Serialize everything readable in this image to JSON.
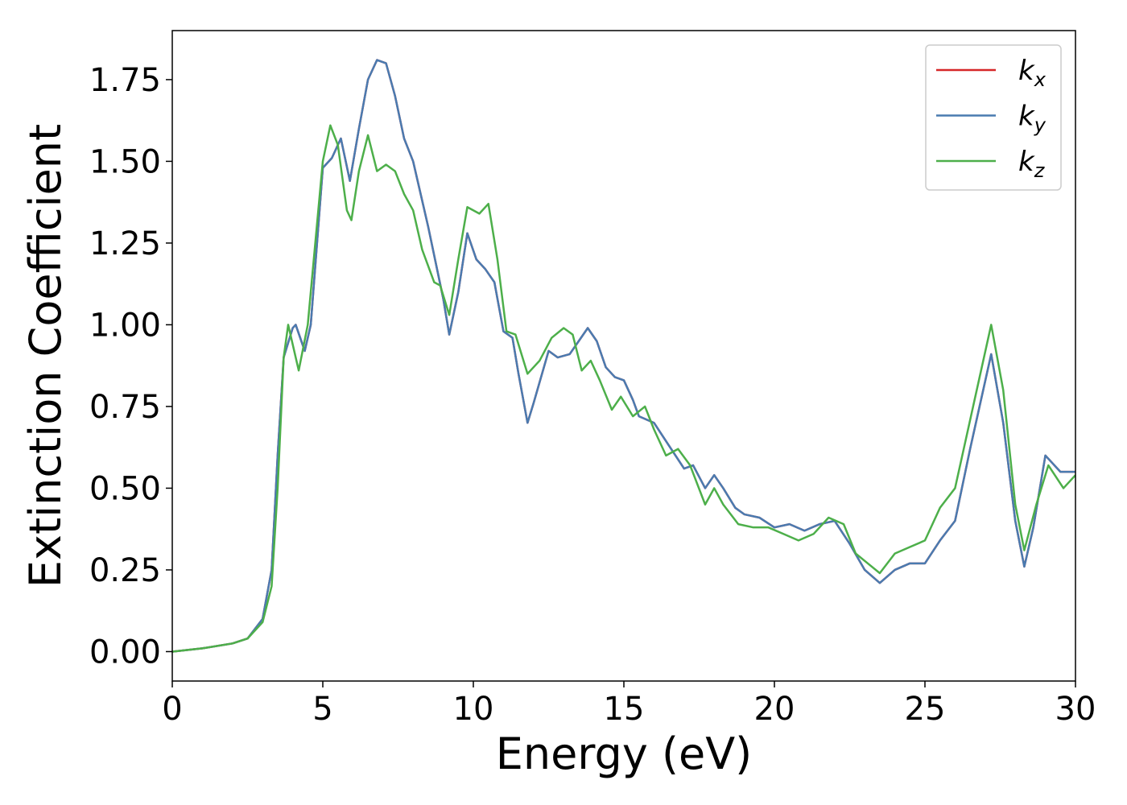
{
  "chart_data": {
    "type": "line",
    "xlabel": "Energy (eV)",
    "ylabel": "Extinction Coefficient",
    "xlim": [
      0,
      30
    ],
    "ylim": [
      -0.09,
      1.9
    ],
    "xticks": [
      0,
      5,
      10,
      15,
      20,
      25,
      30
    ],
    "yticks": [
      {
        "value": 0,
        "label": "0.00"
      },
      {
        "value": 0.25,
        "label": "0.25"
      },
      {
        "value": 0.5,
        "label": "0.50"
      },
      {
        "value": 0.75,
        "label": "0.75"
      },
      {
        "value": 1,
        "label": "1.00"
      },
      {
        "value": 1.25,
        "label": "1.25"
      },
      {
        "value": 1.5,
        "label": "1.50"
      },
      {
        "value": 1.75,
        "label": "1.75"
      }
    ],
    "grid": false,
    "legend": "upper right",
    "series": [
      {
        "name": "kx",
        "color": "#d62728",
        "x": [
          0,
          1,
          2,
          2.5,
          3,
          3.3,
          3.5,
          3.7,
          4,
          4.1,
          4.4,
          4.6,
          5,
          5.3,
          5.6,
          5.9,
          6.2,
          6.5,
          6.8,
          7.1,
          7.4,
          7.7,
          8,
          8.5,
          9,
          9.2,
          9.5,
          9.8,
          10.1,
          10.4,
          10.7,
          11,
          11.3,
          11.5,
          11.8,
          12,
          12.5,
          12.8,
          13.2,
          13.5,
          13.8,
          14.1,
          14.4,
          14.7,
          15,
          15.3,
          15.5,
          16,
          16.5,
          17,
          17.3,
          17.7,
          18,
          18.3,
          18.7,
          19,
          19.5,
          20,
          20.5,
          21,
          21.5,
          22,
          22.5,
          23,
          23.5,
          24,
          24.5,
          25,
          25.5,
          26,
          26.5,
          27.2,
          27.6,
          28,
          28.3,
          28.6,
          29,
          29.5,
          30
        ],
        "values": [
          0,
          0.01,
          0.025,
          0.04,
          0.1,
          0.25,
          0.6,
          0.9,
          0.99,
          1.0,
          0.92,
          1.0,
          1.48,
          1.51,
          1.57,
          1.44,
          1.6,
          1.75,
          1.81,
          1.8,
          1.7,
          1.57,
          1.5,
          1.3,
          1.08,
          0.97,
          1.1,
          1.28,
          1.2,
          1.17,
          1.13,
          0.98,
          0.96,
          0.85,
          0.7,
          0.76,
          0.92,
          0.9,
          0.91,
          0.95,
          0.99,
          0.95,
          0.87,
          0.84,
          0.83,
          0.77,
          0.72,
          0.7,
          0.63,
          0.56,
          0.57,
          0.5,
          0.54,
          0.5,
          0.44,
          0.42,
          0.41,
          0.38,
          0.39,
          0.37,
          0.39,
          0.4,
          0.33,
          0.25,
          0.21,
          0.25,
          0.27,
          0.27,
          0.34,
          0.4,
          0.62,
          0.91,
          0.7,
          0.4,
          0.26,
          0.38,
          0.6,
          0.55,
          0.55
        ]
      },
      {
        "name": "ky",
        "color": "#4a7bb0",
        "x": [
          0,
          1,
          2,
          2.5,
          3,
          3.3,
          3.5,
          3.7,
          4,
          4.1,
          4.4,
          4.6,
          5,
          5.3,
          5.6,
          5.9,
          6.2,
          6.5,
          6.8,
          7.1,
          7.4,
          7.7,
          8,
          8.5,
          9,
          9.2,
          9.5,
          9.8,
          10.1,
          10.4,
          10.7,
          11,
          11.3,
          11.5,
          11.8,
          12,
          12.5,
          12.8,
          13.2,
          13.5,
          13.8,
          14.1,
          14.4,
          14.7,
          15,
          15.3,
          15.5,
          16,
          16.5,
          17,
          17.3,
          17.7,
          18,
          18.3,
          18.7,
          19,
          19.5,
          20,
          20.5,
          21,
          21.5,
          22,
          22.5,
          23,
          23.5,
          24,
          24.5,
          25,
          25.5,
          26,
          26.5,
          27.2,
          27.6,
          28,
          28.3,
          28.6,
          29,
          29.5,
          30
        ],
        "values": [
          0,
          0.01,
          0.025,
          0.04,
          0.1,
          0.25,
          0.6,
          0.9,
          0.99,
          1.0,
          0.92,
          1.0,
          1.48,
          1.51,
          1.57,
          1.44,
          1.6,
          1.75,
          1.81,
          1.8,
          1.7,
          1.57,
          1.5,
          1.3,
          1.08,
          0.97,
          1.1,
          1.28,
          1.2,
          1.17,
          1.13,
          0.98,
          0.96,
          0.85,
          0.7,
          0.76,
          0.92,
          0.9,
          0.91,
          0.95,
          0.99,
          0.95,
          0.87,
          0.84,
          0.83,
          0.77,
          0.72,
          0.7,
          0.63,
          0.56,
          0.57,
          0.5,
          0.54,
          0.5,
          0.44,
          0.42,
          0.41,
          0.38,
          0.39,
          0.37,
          0.39,
          0.4,
          0.33,
          0.25,
          0.21,
          0.25,
          0.27,
          0.27,
          0.34,
          0.4,
          0.62,
          0.91,
          0.7,
          0.4,
          0.26,
          0.38,
          0.6,
          0.55,
          0.55
        ]
      },
      {
        "name": "kz",
        "color": "#4daf4a",
        "x": [
          0,
          1,
          2,
          2.5,
          3,
          3.3,
          3.5,
          3.7,
          3.85,
          4.05,
          4.2,
          4.5,
          4.8,
          5,
          5.25,
          5.5,
          5.8,
          5.95,
          6.2,
          6.5,
          6.8,
          7.1,
          7.4,
          7.7,
          8,
          8.3,
          8.7,
          8.9,
          9.2,
          9.5,
          9.8,
          10.2,
          10.5,
          10.8,
          11.1,
          11.4,
          11.8,
          12.2,
          12.6,
          13,
          13.3,
          13.6,
          13.9,
          14.2,
          14.6,
          14.9,
          15.3,
          15.7,
          16,
          16.4,
          16.8,
          17.2,
          17.7,
          18,
          18.3,
          18.8,
          19.3,
          19.8,
          20.3,
          20.8,
          21.3,
          21.8,
          22.3,
          22.7,
          23.1,
          23.5,
          24,
          24.5,
          25,
          25.5,
          26,
          26.6,
          27.2,
          27.6,
          28,
          28.3,
          28.7,
          29.1,
          29.6,
          30
        ],
        "values": [
          0,
          0.01,
          0.025,
          0.04,
          0.09,
          0.2,
          0.5,
          0.9,
          1.0,
          0.92,
          0.86,
          1.0,
          1.3,
          1.5,
          1.61,
          1.55,
          1.35,
          1.32,
          1.47,
          1.58,
          1.47,
          1.49,
          1.47,
          1.4,
          1.35,
          1.23,
          1.13,
          1.12,
          1.03,
          1.2,
          1.36,
          1.34,
          1.37,
          1.2,
          0.98,
          0.97,
          0.85,
          0.89,
          0.96,
          0.99,
          0.97,
          0.86,
          0.89,
          0.83,
          0.74,
          0.78,
          0.72,
          0.75,
          0.68,
          0.6,
          0.62,
          0.57,
          0.45,
          0.5,
          0.45,
          0.39,
          0.38,
          0.38,
          0.36,
          0.34,
          0.36,
          0.41,
          0.39,
          0.3,
          0.27,
          0.24,
          0.3,
          0.32,
          0.34,
          0.44,
          0.5,
          0.75,
          1.0,
          0.8,
          0.45,
          0.31,
          0.45,
          0.57,
          0.5,
          0.54
        ]
      }
    ]
  }
}
